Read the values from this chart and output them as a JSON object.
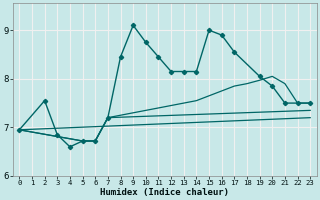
{
  "xlabel": "Humidex (Indice chaleur)",
  "bg_color": "#c8e8e8",
  "grid_color": "#f0f0f0",
  "line_color": "#006666",
  "xlim": [
    -0.5,
    23.5
  ],
  "ylim": [
    6.0,
    9.55
  ],
  "yticks": [
    6,
    7,
    8,
    9
  ],
  "xticks": [
    0,
    1,
    2,
    3,
    4,
    5,
    6,
    7,
    8,
    9,
    10,
    11,
    12,
    13,
    14,
    15,
    16,
    17,
    18,
    19,
    20,
    21,
    22,
    23
  ],
  "main_x": [
    0,
    2,
    3,
    4,
    5,
    6,
    7,
    8,
    9,
    10,
    11,
    12,
    13,
    14,
    15,
    16,
    17,
    19,
    20,
    21,
    22,
    23
  ],
  "main_y": [
    6.95,
    7.55,
    6.85,
    6.6,
    6.72,
    6.72,
    7.2,
    8.45,
    9.1,
    8.75,
    8.45,
    8.15,
    8.15,
    8.15,
    9.0,
    8.9,
    8.55,
    8.05,
    7.85,
    7.5,
    7.5,
    7.5
  ],
  "line2_x": [
    0,
    5,
    6,
    7,
    8,
    9,
    10,
    11,
    12,
    13,
    14,
    15,
    16,
    17,
    18,
    19,
    20,
    21,
    22,
    23
  ],
  "line2_y": [
    6.95,
    6.72,
    6.72,
    7.2,
    7.25,
    7.3,
    7.35,
    7.4,
    7.45,
    7.5,
    7.55,
    7.65,
    7.75,
    7.85,
    7.9,
    7.97,
    8.05,
    7.9,
    7.5,
    7.5
  ],
  "line3_x": [
    0,
    5,
    6,
    7,
    23
  ],
  "line3_y": [
    6.95,
    6.72,
    6.72,
    7.2,
    7.35
  ],
  "line4_x": [
    0,
    23
  ],
  "line4_y": [
    6.95,
    7.2
  ]
}
